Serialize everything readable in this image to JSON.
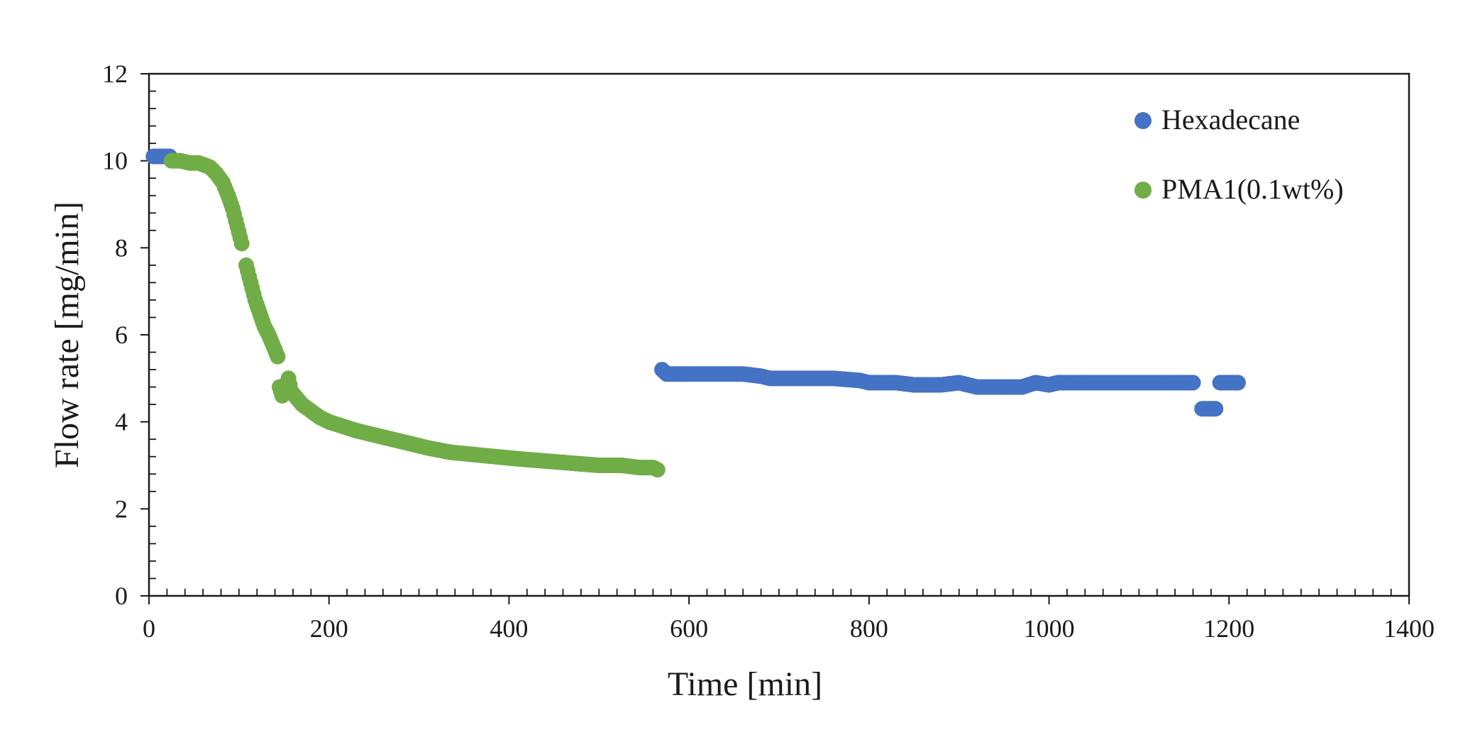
{
  "chart_data": {
    "type": "scatter",
    "title": "",
    "xlabel": "Time [min]",
    "ylabel": "Flow rate [mg/min]",
    "xlim": [
      0,
      1400
    ],
    "ylim": [
      0,
      12
    ],
    "x_ticks": [
      0,
      200,
      400,
      600,
      800,
      1000,
      1200,
      1400
    ],
    "y_ticks": [
      0,
      2,
      4,
      6,
      8,
      10,
      12
    ],
    "x_tick_labels": [
      "0",
      "200",
      "400",
      "600",
      "800",
      "1000",
      "1200",
      "1400"
    ],
    "y_tick_labels": [
      "0",
      "2",
      "4",
      "6",
      "8",
      "10",
      "12"
    ],
    "minor_ticks": true,
    "grid": false,
    "legend_position": "top-right",
    "series": [
      {
        "name": "Hexadecane",
        "color": "#4472C4",
        "points": [
          [
            5,
            10.1
          ],
          [
            10,
            10.1
          ],
          [
            15,
            10.1
          ],
          [
            20,
            10.1
          ],
          [
            23,
            10.1
          ],
          [
            570,
            5.2
          ],
          [
            575,
            5.1
          ],
          [
            600,
            5.1
          ],
          [
            630,
            5.1
          ],
          [
            660,
            5.1
          ],
          [
            680,
            5.05
          ],
          [
            690,
            5.0
          ],
          [
            720,
            5.0
          ],
          [
            760,
            5.0
          ],
          [
            790,
            4.95
          ],
          [
            800,
            4.9
          ],
          [
            830,
            4.9
          ],
          [
            850,
            4.85
          ],
          [
            880,
            4.85
          ],
          [
            900,
            4.9
          ],
          [
            920,
            4.8
          ],
          [
            950,
            4.8
          ],
          [
            970,
            4.8
          ],
          [
            985,
            4.9
          ],
          [
            1000,
            4.85
          ],
          [
            1010,
            4.9
          ],
          [
            1040,
            4.9
          ],
          [
            1080,
            4.9
          ],
          [
            1120,
            4.9
          ],
          [
            1160,
            4.9
          ],
          [
            1170,
            4.3
          ],
          [
            1175,
            4.3
          ],
          [
            1180,
            4.3
          ],
          [
            1185,
            4.3
          ],
          [
            1190,
            4.9
          ],
          [
            1200,
            4.9
          ],
          [
            1210,
            4.9
          ]
        ]
      },
      {
        "name": "PMA1(0.1wt%)",
        "color": "#70AD47",
        "points": [
          [
            25,
            10.0
          ],
          [
            35,
            10.0
          ],
          [
            45,
            9.95
          ],
          [
            55,
            9.95
          ],
          [
            62,
            9.9
          ],
          [
            68,
            9.85
          ],
          [
            75,
            9.7
          ],
          [
            82,
            9.5
          ],
          [
            88,
            9.2
          ],
          [
            93,
            8.9
          ],
          [
            98,
            8.5
          ],
          [
            103,
            8.1
          ],
          [
            108,
            7.6
          ],
          [
            113,
            7.2
          ],
          [
            118,
            6.8
          ],
          [
            123,
            6.5
          ],
          [
            128,
            6.2
          ],
          [
            133,
            6.0
          ],
          [
            138,
            5.75
          ],
          [
            143,
            5.5
          ],
          [
            145,
            4.8
          ],
          [
            148,
            4.6
          ],
          [
            152,
            4.8
          ],
          [
            155,
            5.0
          ],
          [
            158,
            4.7
          ],
          [
            162,
            4.6
          ],
          [
            170,
            4.4
          ],
          [
            180,
            4.25
          ],
          [
            190,
            4.1
          ],
          [
            200,
            4.0
          ],
          [
            215,
            3.9
          ],
          [
            230,
            3.8
          ],
          [
            250,
            3.7
          ],
          [
            270,
            3.6
          ],
          [
            290,
            3.5
          ],
          [
            310,
            3.4
          ],
          [
            335,
            3.3
          ],
          [
            360,
            3.25
          ],
          [
            385,
            3.2
          ],
          [
            410,
            3.15
          ],
          [
            440,
            3.1
          ],
          [
            470,
            3.05
          ],
          [
            500,
            3.0
          ],
          [
            525,
            3.0
          ],
          [
            545,
            2.95
          ],
          [
            560,
            2.95
          ],
          [
            565,
            2.9
          ]
        ]
      }
    ]
  }
}
